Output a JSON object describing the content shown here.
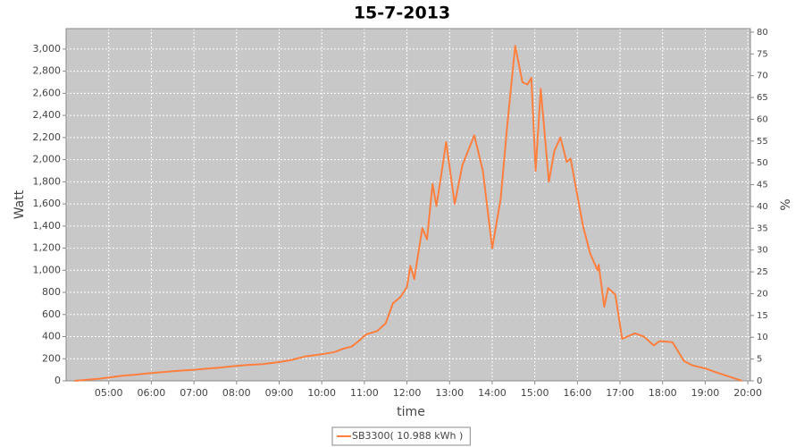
{
  "chart_data": {
    "type": "line",
    "title": "15-7-2013",
    "x_label": "time",
    "y_label": "Watt",
    "y2_label": "%",
    "x": [
      4.2,
      4.5,
      4.8,
      5.0,
      5.3,
      5.6,
      6.0,
      6.3,
      6.6,
      7.0,
      7.3,
      7.6,
      8.0,
      8.3,
      8.6,
      9.0,
      9.3,
      9.6,
      10.0,
      10.3,
      10.5,
      10.7,
      10.9,
      11.04,
      11.3,
      11.5,
      11.67,
      11.85,
      12.0,
      12.08,
      12.17,
      12.36,
      12.47,
      12.6,
      12.69,
      12.8,
      12.92,
      13.12,
      13.3,
      13.58,
      13.78,
      14.0,
      14.2,
      14.35,
      14.54,
      14.71,
      14.83,
      14.92,
      15.02,
      15.14,
      15.33,
      15.46,
      15.6,
      15.75,
      15.84,
      16.13,
      16.3,
      16.47,
      16.5,
      16.63,
      16.72,
      16.89,
      17.05,
      17.35,
      17.56,
      17.79,
      17.93,
      18.23,
      18.5,
      18.7,
      19.02,
      19.23,
      19.55,
      19.86
    ],
    "series": [
      {
        "name": "SB3300( 10.988 kWh )",
        "color": "#ff7f3f",
        "values": [
          0,
          10,
          20,
          30,
          45,
          55,
          70,
          80,
          90,
          100,
          110,
          120,
          135,
          145,
          150,
          170,
          190,
          220,
          240,
          260,
          290,
          310,
          370,
          420,
          450,
          520,
          700,
          760,
          850,
          1040,
          920,
          1380,
          1280,
          1780,
          1580,
          1850,
          2160,
          1600,
          1950,
          2220,
          1900,
          1200,
          1650,
          2300,
          3030,
          2700,
          2680,
          2740,
          1900,
          2640,
          1800,
          2080,
          2200,
          1980,
          2010,
          1400,
          1150,
          1000,
          1050,
          670,
          840,
          780,
          380,
          430,
          400,
          320,
          360,
          350,
          180,
          140,
          110,
          80,
          40,
          0
        ]
      }
    ],
    "xlim": [
      4.0,
      20.06
    ],
    "xticks": [
      {
        "value": 5,
        "label": "05:00"
      },
      {
        "value": 6,
        "label": "06:00"
      },
      {
        "value": 7,
        "label": "07:00"
      },
      {
        "value": 8,
        "label": "08:00"
      },
      {
        "value": 9,
        "label": "09:00"
      },
      {
        "value": 10,
        "label": "10:00"
      },
      {
        "value": 11,
        "label": "11:00"
      },
      {
        "value": 12,
        "label": "12:00"
      },
      {
        "value": 13,
        "label": "13:00"
      },
      {
        "value": 14,
        "label": "14:00"
      },
      {
        "value": 15,
        "label": "15:00"
      },
      {
        "value": 16,
        "label": "16:00"
      },
      {
        "value": 17,
        "label": "17:00"
      },
      {
        "value": 18,
        "label": "18:00"
      },
      {
        "value": 19,
        "label": "19:00"
      },
      {
        "value": 20,
        "label": "20:00"
      }
    ],
    "ylim": [
      0,
      3185
    ],
    "yticks": [
      0,
      200,
      400,
      600,
      800,
      {
        "value": 1000,
        "label": "1,000"
      },
      {
        "value": 1200,
        "label": "1,200"
      },
      {
        "value": 1400,
        "label": "1,400"
      },
      {
        "value": 1600,
        "label": "1,600"
      },
      {
        "value": 1800,
        "label": "1,800"
      },
      {
        "value": 2000,
        "label": "2,000"
      },
      {
        "value": 2200,
        "label": "2,200"
      },
      {
        "value": 2400,
        "label": "2,400"
      },
      {
        "value": 2600,
        "label": "2,600"
      },
      {
        "value": 2800,
        "label": "2,800"
      },
      {
        "value": 3000,
        "label": "3,000"
      }
    ],
    "y2lim": [
      0,
      80.8
    ],
    "y2ticks": [
      0,
      5,
      10,
      15,
      20,
      25,
      30,
      35,
      40,
      45,
      50,
      55,
      60,
      65,
      70,
      75,
      80
    ],
    "grid": true,
    "legend": "bottom"
  }
}
